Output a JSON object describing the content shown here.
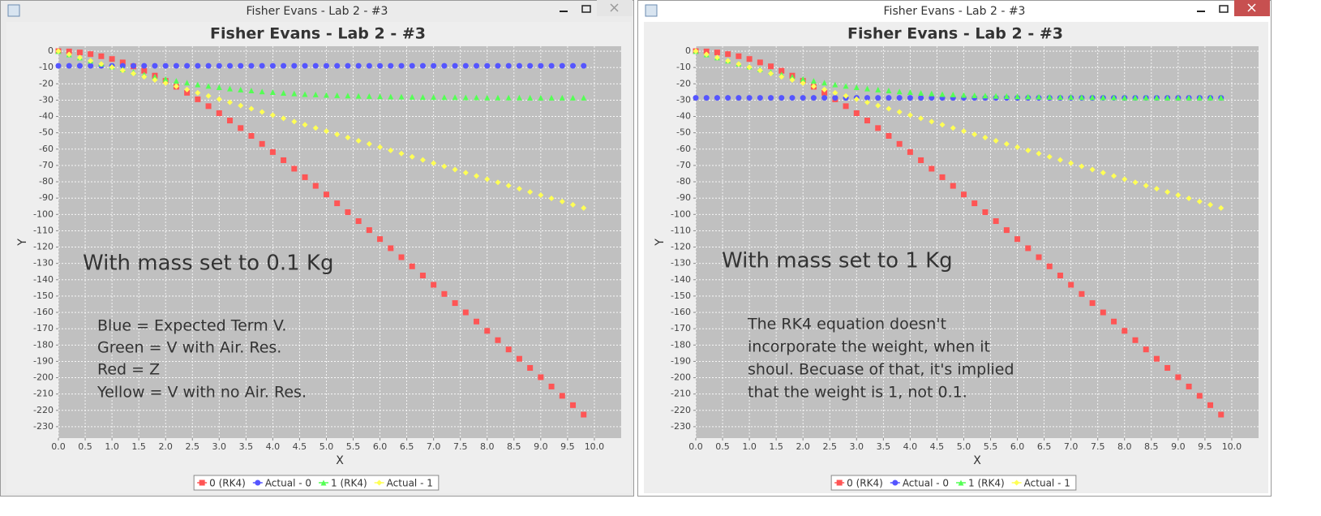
{
  "windows": [
    {
      "title": "Fisher Evans - Lab 2 - #3"
    },
    {
      "title": "Fisher Evans - Lab 2 - #3"
    }
  ],
  "chart_data": [
    {
      "type": "scatter",
      "title": "Fisher Evans - Lab 2 - #3",
      "x_label": "X",
      "y_label": "Y",
      "annotations": [
        "With mass set to 0.1 Kg",
        "Blue = Expected Term V.",
        "Green = V with Air. Res.",
        "Red = Z",
        "Yellow = V with no Air. Res."
      ],
      "x": [
        0,
        0.2,
        0.4,
        0.6,
        0.8,
        1,
        1.2,
        1.4,
        1.6,
        1.8,
        2,
        2.2,
        2.4,
        2.6,
        2.8,
        3,
        3.2,
        3.4,
        3.6,
        3.8,
        4,
        4.2,
        4.4,
        4.6,
        4.8,
        5,
        5.2,
        5.4,
        5.6,
        5.8,
        6,
        6.2,
        6.4,
        6.6,
        6.8,
        7,
        7.2,
        7.4,
        7.6,
        7.8,
        8,
        8.2,
        8.4,
        8.6,
        8.8,
        9,
        9.2,
        9.4,
        9.6,
        9.8
      ],
      "series": [
        {
          "name": "0 (RK4)",
          "color": "#ff5555",
          "marker": "square",
          "values": [
            0,
            -0.2,
            -0.8,
            -1.8,
            -3.1,
            -4.8,
            -6.9,
            -9.3,
            -12.0,
            -15.0,
            -18.2,
            -21.8,
            -25.5,
            -29.5,
            -33.7,
            -38.0,
            -42.5,
            -47.1,
            -51.9,
            -56.8,
            -61.8,
            -66.8,
            -72.0,
            -77.2,
            -82.5,
            -87.8,
            -93.2,
            -98.6,
            -104.1,
            -109.6,
            -115.1,
            -120.7,
            -126.2,
            -131.8,
            -137.4,
            -143.1,
            -148.7,
            -154.3,
            -160.0,
            -165.6,
            -171.3,
            -177.0,
            -182.7,
            -188.4,
            -194.0,
            -199.7,
            -205.4,
            -211.1,
            -216.8,
            -222.6
          ]
        },
        {
          "name": "Actual - 0",
          "color": "#5555ff",
          "marker": "circle",
          "values": [
            -9.0,
            -9.0,
            -9.0,
            -9.0,
            -9.0,
            -9.0,
            -9.0,
            -9.0,
            -9.0,
            -9.0,
            -9.0,
            -9.0,
            -9.0,
            -9.0,
            -9.0,
            -9.0,
            -9.0,
            -9.0,
            -9.0,
            -9.0,
            -9.0,
            -9.0,
            -9.0,
            -9.0,
            -9.0,
            -9.0,
            -9.0,
            -9.0,
            -9.0,
            -9.0,
            -9.0,
            -9.0,
            -9.0,
            -9.0,
            -9.0,
            -9.0,
            -9.0,
            -9.0,
            -9.0,
            -9.0,
            -9.0,
            -9.0,
            -9.0,
            -9.0,
            -9.0,
            -9.0,
            -9.0,
            -9.0,
            -9.0,
            -9.0
          ]
        },
        {
          "name": "1 (RK4)",
          "color": "#55ff55",
          "marker": "triangle",
          "values": [
            0,
            -2.0,
            -3.9,
            -5.8,
            -7.7,
            -9.4,
            -11.1,
            -12.8,
            -14.3,
            -15.7,
            -17.0,
            -18.2,
            -19.3,
            -20.4,
            -21.3,
            -22.1,
            -22.9,
            -23.5,
            -24.1,
            -24.7,
            -25.1,
            -25.6,
            -25.9,
            -26.3,
            -26.5,
            -26.8,
            -27.0,
            -27.2,
            -27.4,
            -27.5,
            -27.7,
            -27.8,
            -27.9,
            -28.0,
            -28.1,
            -28.1,
            -28.2,
            -28.2,
            -28.3,
            -28.3,
            -28.4,
            -28.4,
            -28.4,
            -28.4,
            -28.5,
            -28.5,
            -28.5,
            -28.5,
            -28.5,
            -28.5
          ]
        },
        {
          "name": "Actual - 1",
          "color": "#ffff55",
          "marker": "diamond",
          "values": [
            0,
            -1.96,
            -3.92,
            -5.88,
            -7.84,
            -9.8,
            -11.76,
            -13.72,
            -15.68,
            -17.64,
            -19.6,
            -21.56,
            -23.52,
            -25.48,
            -27.44,
            -29.4,
            -31.36,
            -33.32,
            -35.28,
            -37.24,
            -39.2,
            -41.16,
            -43.12,
            -45.08,
            -47.04,
            -49,
            -50.96,
            -52.92,
            -54.88,
            -56.84,
            -58.8,
            -60.76,
            -62.72,
            -64.68,
            -66.64,
            -68.6,
            -70.56,
            -72.52,
            -74.48,
            -76.44,
            -78.4,
            -80.36,
            -82.32,
            -84.28,
            -86.24,
            -88.2,
            -90.16,
            -92.12,
            -94.08,
            -96.04
          ]
        }
      ],
      "xlim": [
        0,
        10.5
      ],
      "ylim": [
        -237,
        3
      ],
      "xticks": [
        {
          "value": 0,
          "label": "0.0"
        },
        {
          "value": 0.5,
          "label": "0.5"
        },
        {
          "value": 1,
          "label": "1.0"
        },
        {
          "value": 1.5,
          "label": "1.5"
        },
        {
          "value": 2,
          "label": "2.0"
        },
        {
          "value": 2.5,
          "label": "2.5"
        },
        {
          "value": 3,
          "label": "3.0"
        },
        {
          "value": 3.5,
          "label": "3.5"
        },
        {
          "value": 4,
          "label": "4.0"
        },
        {
          "value": 4.5,
          "label": "4.5"
        },
        {
          "value": 5,
          "label": "5.0"
        },
        {
          "value": 5.5,
          "label": "5.5"
        },
        {
          "value": 6,
          "label": "6.0"
        },
        {
          "value": 6.5,
          "label": "6.5"
        },
        {
          "value": 7,
          "label": "7.0"
        },
        {
          "value": 7.5,
          "label": "7.5"
        },
        {
          "value": 8,
          "label": "8.0"
        },
        {
          "value": 8.5,
          "label": "8.5"
        },
        {
          "value": 9,
          "label": "9.0"
        },
        {
          "value": 9.5,
          "label": "9.5"
        },
        {
          "value": 10,
          "label": "10.0"
        }
      ],
      "yticks": [
        0,
        -10,
        -20,
        -30,
        -40,
        -50,
        -60,
        -70,
        -80,
        -90,
        -100,
        -110,
        -120,
        -130,
        -140,
        -150,
        -160,
        -170,
        -180,
        -190,
        -200,
        -210,
        -220,
        -230
      ],
      "grid": true,
      "legend": "bottom"
    },
    {
      "type": "scatter",
      "title": "Fisher Evans - Lab 2 - #3",
      "x_label": "X",
      "y_label": "Y",
      "annotations": [
        "With mass set to 1 Kg",
        "The RK4 equation doesn't",
        "incorporate the weight, when it",
        "shoul. Becuase of that, it's implied",
        "that the weight is 1, not 0.1."
      ],
      "x": [
        0,
        0.2,
        0.4,
        0.6,
        0.8,
        1,
        1.2,
        1.4,
        1.6,
        1.8,
        2,
        2.2,
        2.4,
        2.6,
        2.8,
        3,
        3.2,
        3.4,
        3.6,
        3.8,
        4,
        4.2,
        4.4,
        4.6,
        4.8,
        5,
        5.2,
        5.4,
        5.6,
        5.8,
        6,
        6.2,
        6.4,
        6.6,
        6.8,
        7,
        7.2,
        7.4,
        7.6,
        7.8,
        8,
        8.2,
        8.4,
        8.6,
        8.8,
        9,
        9.2,
        9.4,
        9.6,
        9.8
      ],
      "series": [
        {
          "name": "0 (RK4)",
          "color": "#ff5555",
          "marker": "square",
          "values": [
            0,
            -0.2,
            -0.8,
            -1.8,
            -3.1,
            -4.8,
            -6.9,
            -9.3,
            -12.0,
            -15.0,
            -18.2,
            -21.8,
            -25.5,
            -29.5,
            -33.7,
            -38.0,
            -42.5,
            -47.1,
            -51.9,
            -56.8,
            -61.8,
            -66.8,
            -72.0,
            -77.2,
            -82.5,
            -87.8,
            -93.2,
            -98.6,
            -104.1,
            -109.6,
            -115.1,
            -120.7,
            -126.2,
            -131.8,
            -137.4,
            -143.1,
            -148.7,
            -154.3,
            -160.0,
            -165.6,
            -171.3,
            -177.0,
            -182.7,
            -188.4,
            -194.0,
            -199.7,
            -205.4,
            -211.1,
            -216.8,
            -222.6
          ]
        },
        {
          "name": "Actual - 0",
          "color": "#5555ff",
          "marker": "circle",
          "values": [
            -28.6,
            -28.6,
            -28.6,
            -28.6,
            -28.6,
            -28.6,
            -28.6,
            -28.6,
            -28.6,
            -28.6,
            -28.6,
            -28.6,
            -28.6,
            -28.6,
            -28.6,
            -28.6,
            -28.6,
            -28.6,
            -28.6,
            -28.6,
            -28.6,
            -28.6,
            -28.6,
            -28.6,
            -28.6,
            -28.6,
            -28.6,
            -28.6,
            -28.6,
            -28.6,
            -28.6,
            -28.6,
            -28.6,
            -28.6,
            -28.6,
            -28.6,
            -28.6,
            -28.6,
            -28.6,
            -28.6,
            -28.6,
            -28.6,
            -28.6,
            -28.6,
            -28.6,
            -28.6,
            -28.6,
            -28.6,
            -28.6,
            -28.6
          ]
        },
        {
          "name": "1 (RK4)",
          "color": "#55ff55",
          "marker": "triangle",
          "values": [
            0,
            -2.0,
            -3.9,
            -5.8,
            -7.7,
            -9.4,
            -11.1,
            -12.8,
            -14.3,
            -15.7,
            -17.0,
            -18.2,
            -19.3,
            -20.4,
            -21.3,
            -22.1,
            -22.9,
            -23.5,
            -24.1,
            -24.7,
            -25.1,
            -25.6,
            -25.9,
            -26.3,
            -26.5,
            -26.8,
            -27.0,
            -27.2,
            -27.4,
            -27.5,
            -27.7,
            -27.8,
            -27.9,
            -28.0,
            -28.1,
            -28.1,
            -28.2,
            -28.2,
            -28.3,
            -28.3,
            -28.4,
            -28.4,
            -28.4,
            -28.4,
            -28.5,
            -28.5,
            -28.5,
            -28.5,
            -28.5,
            -28.5
          ]
        },
        {
          "name": "Actual - 1",
          "color": "#ffff55",
          "marker": "diamond",
          "values": [
            0,
            -1.96,
            -3.92,
            -5.88,
            -7.84,
            -9.8,
            -11.76,
            -13.72,
            -15.68,
            -17.64,
            -19.6,
            -21.56,
            -23.52,
            -25.48,
            -27.44,
            -29.4,
            -31.36,
            -33.32,
            -35.28,
            -37.24,
            -39.2,
            -41.16,
            -43.12,
            -45.08,
            -47.04,
            -49,
            -50.96,
            -52.92,
            -54.88,
            -56.84,
            -58.8,
            -60.76,
            -62.72,
            -64.68,
            -66.64,
            -68.6,
            -70.56,
            -72.52,
            -74.48,
            -76.44,
            -78.4,
            -80.36,
            -82.32,
            -84.28,
            -86.24,
            -88.2,
            -90.16,
            -92.12,
            -94.08,
            -96.04
          ]
        }
      ],
      "xlim": [
        0,
        10.5
      ],
      "ylim": [
        -237,
        3
      ],
      "xticks": [
        {
          "value": 0,
          "label": "0.0"
        },
        {
          "value": 0.5,
          "label": "0.5"
        },
        {
          "value": 1,
          "label": "1.0"
        },
        {
          "value": 1.5,
          "label": "1.5"
        },
        {
          "value": 2,
          "label": "2.0"
        },
        {
          "value": 2.5,
          "label": "2.5"
        },
        {
          "value": 3,
          "label": "3.0"
        },
        {
          "value": 3.5,
          "label": "3.5"
        },
        {
          "value": 4,
          "label": "4.0"
        },
        {
          "value": 4.5,
          "label": "4.5"
        },
        {
          "value": 5,
          "label": "5.0"
        },
        {
          "value": 5.5,
          "label": "5.5"
        },
        {
          "value": 6,
          "label": "6.0"
        },
        {
          "value": 6.5,
          "label": "6.5"
        },
        {
          "value": 7,
          "label": "7.0"
        },
        {
          "value": 7.5,
          "label": "7.5"
        },
        {
          "value": 8,
          "label": "8.0"
        },
        {
          "value": 8.5,
          "label": "8.5"
        },
        {
          "value": 9,
          "label": "9.0"
        },
        {
          "value": 9.5,
          "label": "9.5"
        },
        {
          "value": 10,
          "label": "10.0"
        }
      ],
      "yticks": [
        0,
        -10,
        -20,
        -30,
        -40,
        -50,
        -60,
        -70,
        -80,
        -90,
        -100,
        -110,
        -120,
        -130,
        -140,
        -150,
        -160,
        -170,
        -180,
        -190,
        -200,
        -210,
        -220,
        -230
      ],
      "grid": true,
      "legend": "bottom"
    }
  ]
}
